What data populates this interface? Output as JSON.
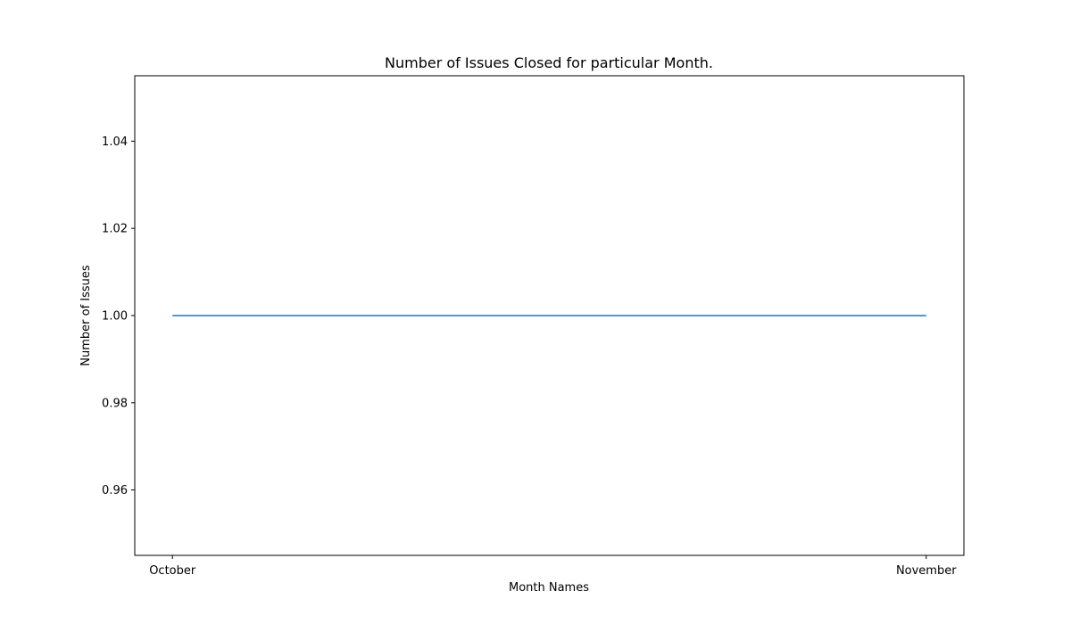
{
  "chart_data": {
    "type": "line",
    "title": "Number of Issues Closed for particular Month.",
    "xlabel": "Month Names",
    "ylabel": "Number of Issues",
    "categories": [
      "October",
      "November"
    ],
    "series": [
      {
        "values": [
          1,
          1
        ],
        "color": "#1f77b4"
      }
    ],
    "ylim": [
      0.945,
      1.055
    ],
    "yticks": [
      0.96,
      0.98,
      1.0,
      1.02,
      1.04
    ],
    "ytick_labels": [
      "0.96",
      "0.98",
      "1.00",
      "1.02",
      "1.04"
    ],
    "grid": false,
    "legend": false
  }
}
